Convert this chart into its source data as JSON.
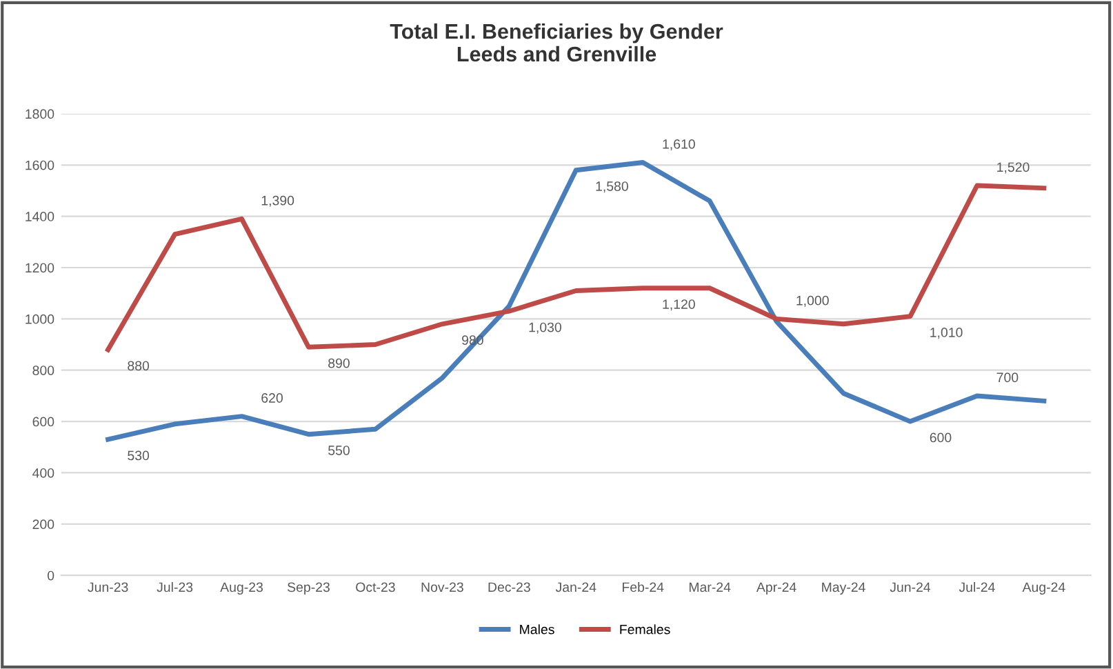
{
  "chart_data": {
    "type": "line",
    "title": "Total E.I. Beneficiaries by Gender\nLeeds and Grenville",
    "categories": [
      "Jun-23",
      "Jul-23",
      "Aug-23",
      "Sep-23",
      "Oct-23",
      "Nov-23",
      "Dec-23",
      "Jan-24",
      "Feb-24",
      "Mar-24",
      "Apr-24",
      "May-24",
      "Jun-24",
      "Jul-24",
      "Aug-24"
    ],
    "series": [
      {
        "name": "Males",
        "color": "#4a7ebb",
        "values": [
          530,
          590,
          620,
          550,
          570,
          770,
          1050,
          1580,
          1610,
          1460,
          990,
          710,
          600,
          700,
          680
        ],
        "value_labels": [
          "530",
          null,
          "620",
          "550",
          null,
          null,
          null,
          "1,580",
          "1,610",
          null,
          null,
          null,
          "600",
          "700",
          null
        ]
      },
      {
        "name": "Females",
        "color": "#be4b48",
        "values": [
          880,
          1330,
          1390,
          890,
          900,
          980,
          1030,
          1110,
          1120,
          1120,
          1000,
          980,
          1010,
          1520,
          1510
        ],
        "value_labels": [
          "880",
          null,
          "1,390",
          "890",
          null,
          "980",
          "1,030",
          null,
          "1,120",
          null,
          "1,000",
          null,
          "1,010",
          "1,520",
          null
        ]
      }
    ],
    "ylim": [
      0,
      1800
    ],
    "yticks": [
      0,
      200,
      400,
      600,
      800,
      1000,
      1200,
      1400,
      1600,
      1800
    ],
    "grid": "y",
    "legend": "bottom",
    "marker": "none",
    "line_style": "solid"
  }
}
